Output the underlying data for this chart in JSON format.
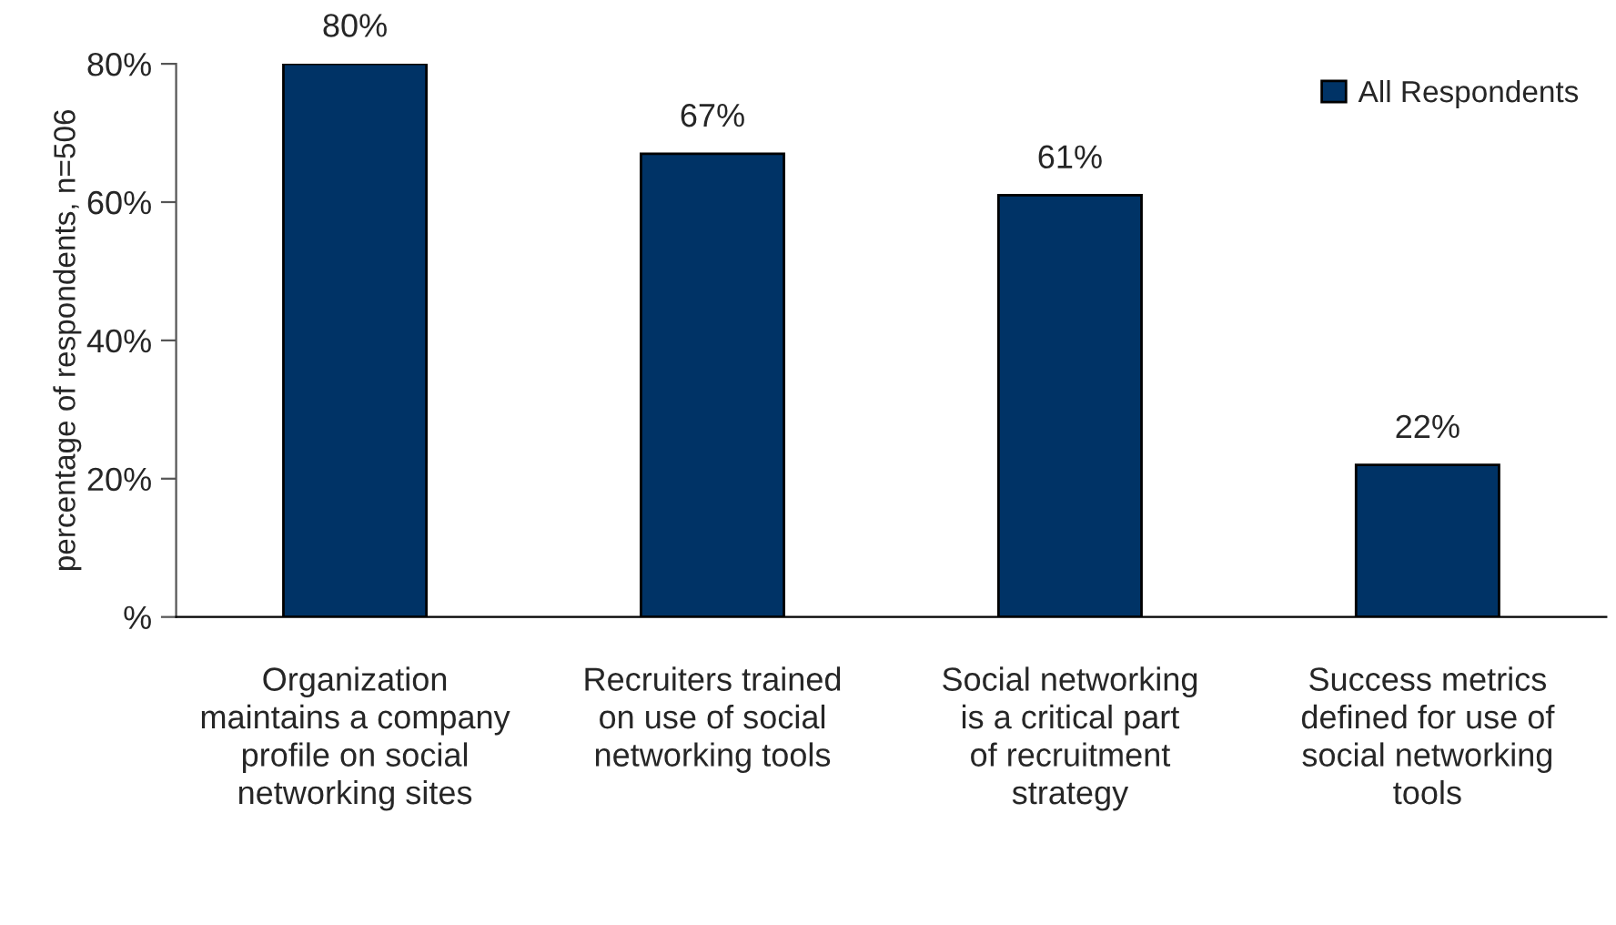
{
  "chart_data": {
    "type": "bar",
    "ylabel": "percentage of respondents, n=506",
    "categories": [
      "Organization maintains a company profile on social networking sites",
      "Recruiters trained on use of social networking tools",
      "Social networking is a critical part of recruitment strategy",
      "Success metrics defined for use of social networking tools"
    ],
    "series": [
      {
        "name": "All Respondents",
        "color": "#003366",
        "values": [
          80,
          67,
          61,
          22
        ],
        "value_labels": [
          "80%",
          "67%",
          "61%",
          "22%"
        ]
      }
    ],
    "ylim": [
      0,
      80
    ],
    "yticks": [
      {
        "value": 0,
        "label": "%"
      },
      {
        "value": 20,
        "label": "20%"
      },
      {
        "value": 40,
        "label": "40%"
      },
      {
        "value": 60,
        "label": "60%"
      },
      {
        "value": 80,
        "label": "80%"
      }
    ],
    "grid": false,
    "legend": "top right"
  }
}
